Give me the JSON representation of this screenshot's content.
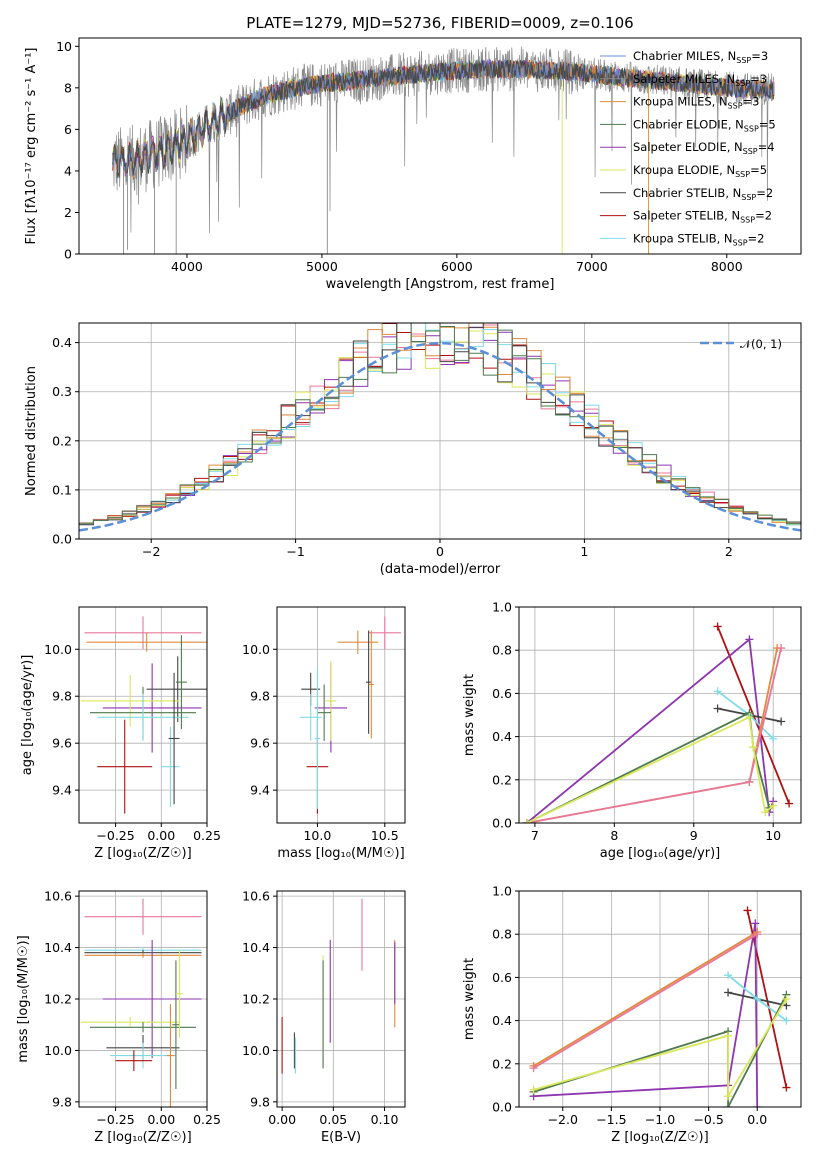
{
  "chart_data": [
    {
      "type": "line",
      "id": "spectrum",
      "title": "PLATE=1279, MJD=52736, FIBERID=0009, z=0.106",
      "xlabel": "wavelength [Angstrom, rest frame]",
      "ylabel": "Flux [fλ10⁻¹⁷ erg cm⁻² s⁻¹ A⁻¹]",
      "xlim": [
        3200,
        8550
      ],
      "ylim": [
        0,
        10.4
      ],
      "xticks": [
        "4000",
        "5000",
        "6000",
        "7000",
        "8000"
      ],
      "yticks": [
        "0",
        "2",
        "4",
        "6",
        "8",
        "10"
      ],
      "legend_placement": "top-right",
      "continuum": [
        [
          3450,
          4.4
        ],
        [
          3600,
          4.5
        ],
        [
          3800,
          4.9
        ],
        [
          4000,
          5.5
        ],
        [
          4200,
          6.4
        ],
        [
          4400,
          7.1
        ],
        [
          4600,
          7.7
        ],
        [
          4800,
          8.0
        ],
        [
          5000,
          8.2
        ],
        [
          5300,
          8.4
        ],
        [
          5600,
          8.6
        ],
        [
          5900,
          8.8
        ],
        [
          6200,
          8.9
        ],
        [
          6500,
          8.9
        ],
        [
          6800,
          8.8
        ],
        [
          7100,
          8.6
        ],
        [
          7400,
          8.4
        ],
        [
          7700,
          8.2
        ],
        [
          8000,
          8.0
        ],
        [
          8350,
          7.9
        ]
      ],
      "series": [
        {
          "name": "Chabrier MILES, N_SSP=3",
          "label": "Chabrier MILES, N",
          "sub": "SSP",
          "suffix": "=3",
          "color": "#6b8ed6"
        },
        {
          "name": "Salpeter MILES, N_SSP=3",
          "label": "Salpeter MILES, N",
          "sub": "SSP",
          "suffix": "=3",
          "color": "#8a8a8a"
        },
        {
          "name": "Kroupa MILES, N_SSP=3",
          "label": "Kroupa MILES, N",
          "sub": "SSP",
          "suffix": "=3",
          "color": "#e08a3c"
        },
        {
          "name": "Chabrier ELODIE, N_SSP=5",
          "label": "Chabrier ELODIE, N",
          "sub": "SSP",
          "suffix": "=5",
          "color": "#4e7a4e"
        },
        {
          "name": "Salpeter ELODIE, N_SSP=4",
          "label": "Salpeter ELODIE, N",
          "sub": "SSP",
          "suffix": "=4",
          "color": "#8e35b0"
        },
        {
          "name": "Kroupa ELODIE, N_SSP=5",
          "label": "Kroupa ELODIE, N",
          "sub": "SSP",
          "suffix": "=5",
          "color": "#d9e85a"
        },
        {
          "name": "Chabrier STELIB, N_SSP=2",
          "label": "Chabrier STELIB, N",
          "sub": "SSP",
          "suffix": "=2",
          "color": "#444444"
        },
        {
          "name": "Salpeter STELIB, N_SSP=2",
          "label": "Salpeter STELIB, N",
          "sub": "SSP",
          "suffix": "=2",
          "color": "#b01010"
        },
        {
          "name": "Kroupa STELIB, N_SSP=2",
          "label": "Kroupa STELIB, N",
          "sub": "SSP",
          "suffix": "=2",
          "color": "#7fdbe6"
        }
      ]
    },
    {
      "type": "histogram",
      "id": "residuals",
      "xlabel": "(data-model)/error",
      "ylabel": "Normed distribution",
      "xlim": [
        -2.5,
        2.5
      ],
      "ylim": [
        0,
        0.44
      ],
      "xticks": [
        "-2",
        "-1",
        "0",
        "1",
        "2"
      ],
      "yticks": [
        "0.0",
        "0.1",
        "0.2",
        "0.3",
        "0.4"
      ],
      "legend": "𝒩(0, 1)",
      "legend_placement": "top-right",
      "bin_width": 0.1,
      "bins_from": -2.5,
      "gaussian_color": "#5b8fd6",
      "hist_colors": [
        "#e8779a",
        "#8e35b0",
        "#b01010",
        "#d9e85a",
        "#7fdbe6",
        "#e08a3c",
        "#444444",
        "#4e7a4e"
      ]
    },
    {
      "type": "scatter",
      "id": "age-vs-Z",
      "xlabel": "Z [log10(Z/Z☉)]",
      "ylabel": "age  [log10(age/yr)]",
      "xlim": [
        -0.45,
        0.25
      ],
      "ylim": [
        9.26,
        10.18
      ],
      "xticks": [
        "-0.25",
        "0.00",
        "0.25"
      ],
      "yticks": [
        "9.4",
        "9.6",
        "9.8",
        "10.0"
      ],
      "points": [
        {
          "x": -0.1,
          "y": 10.07,
          "xerr": 0.32,
          "yerr": 0.07,
          "color": "#e8779a"
        },
        {
          "x": -0.08,
          "y": 10.03,
          "xerr": 0.33,
          "yerr": 0.04,
          "color": "#e08a3c"
        },
        {
          "x": 0.09,
          "y": 9.83,
          "xerr": 0.17,
          "yerr": 0.14,
          "color": "#444444"
        },
        {
          "x": -0.05,
          "y": 9.75,
          "xerr": 0.27,
          "yerr": 0.19,
          "color": "#8e35b0"
        },
        {
          "x": -0.17,
          "y": 9.78,
          "xerr": 0.27,
          "yerr": 0.11,
          "color": "#d9e85a"
        },
        {
          "x": -0.1,
          "y": 9.73,
          "xerr": 0.29,
          "yerr": 0.11,
          "color": "#4e7a4e"
        },
        {
          "x": -0.1,
          "y": 9.71,
          "xerr": 0.25,
          "yerr": 0.1,
          "color": "#7fdbe6"
        },
        {
          "x": -0.2,
          "y": 9.5,
          "xerr": 0.15,
          "yerr": 0.2,
          "color": "#b01010"
        },
        {
          "x": 0.05,
          "y": 9.5,
          "xerr": 0.05,
          "yerr": 0.17,
          "color": "#7fdbe6"
        },
        {
          "x": 0.07,
          "y": 9.62,
          "xerr": 0.03,
          "yerr": 0.28,
          "color": "#444444"
        },
        {
          "x": 0.11,
          "y": 9.86,
          "xerr": 0.03,
          "yerr": 0.2,
          "color": "#4e7a4e"
        }
      ]
    },
    {
      "type": "scatter",
      "id": "age-vs-mass",
      "xlabel": "mass [log10(M/M☉)]",
      "ylabel": "",
      "xlim": [
        9.7,
        10.65
      ],
      "ylim": [
        9.26,
        10.18
      ],
      "xticks": [
        "10.0",
        "10.5"
      ],
      "yticks": [
        "9.4",
        "9.6",
        "9.8",
        "10.0"
      ],
      "points": [
        {
          "x": 10.5,
          "y": 10.07,
          "xerr": 0.12,
          "yerr": 0.07,
          "color": "#e8779a"
        },
        {
          "x": 10.3,
          "y": 10.03,
          "xerr": 0.15,
          "yerr": 0.05,
          "color": "#e08a3c"
        },
        {
          "x": 9.95,
          "y": 9.83,
          "xerr": 0.07,
          "yerr": 0.07,
          "color": "#444444"
        },
        {
          "x": 10.1,
          "y": 9.75,
          "xerr": 0.12,
          "yerr": 0.19,
          "color": "#8e35b0"
        },
        {
          "x": 10.1,
          "y": 9.78,
          "xerr": 0.04,
          "yerr": 0.17,
          "color": "#d9e85a"
        },
        {
          "x": 10.05,
          "y": 9.73,
          "xerr": 0.05,
          "yerr": 0.12,
          "color": "#4e7a4e"
        },
        {
          "x": 9.95,
          "y": 9.71,
          "xerr": 0.08,
          "yerr": 0.1,
          "color": "#7fdbe6"
        },
        {
          "x": 10.0,
          "y": 9.5,
          "xerr": 0.08,
          "yerr": 0.2,
          "color": "#b01010"
        },
        {
          "x": 10.38,
          "y": 9.86,
          "xerr": 0.02,
          "yerr": 0.22,
          "color": "#444444"
        },
        {
          "x": 10.4,
          "y": 9.85,
          "xerr": 0.02,
          "yerr": 0.23,
          "color": "#e08a3c"
        },
        {
          "x": 10.0,
          "y": 9.62,
          "xerr": 0.02,
          "yerr": 0.3,
          "color": "#7fdbe6"
        }
      ]
    },
    {
      "type": "line",
      "id": "weight-vs-age",
      "xlabel": "age  [log10(age/yr)]",
      "ylabel": "mass weight",
      "xlim": [
        6.8,
        10.35
      ],
      "ylim": [
        0,
        1.0
      ],
      "xticks": [
        "7",
        "8",
        "9",
        "10"
      ],
      "yticks": [
        "0.0",
        "0.2",
        "0.4",
        "0.6",
        "0.8",
        "1.0"
      ],
      "series": [
        {
          "color": "#b01010",
          "points": [
            [
              9.3,
              0.91
            ],
            [
              10.2,
              0.09
            ]
          ]
        },
        {
          "color": "#8e35b0",
          "points": [
            [
              6.9,
              0.0
            ],
            [
              9.7,
              0.85
            ],
            [
              9.95,
              0.05
            ],
            [
              10.0,
              0.1
            ]
          ]
        },
        {
          "color": "#444444",
          "points": [
            [
              9.3,
              0.53
            ],
            [
              9.7,
              0.5
            ],
            [
              10.1,
              0.47
            ]
          ]
        },
        {
          "color": "#7fdbe6",
          "points": [
            [
              9.3,
              0.61
            ],
            [
              9.7,
              0.5
            ],
            [
              10.0,
              0.39
            ]
          ]
        },
        {
          "color": "#e08a3c",
          "points": [
            [
              6.9,
              0.0
            ],
            [
              9.7,
              0.19
            ],
            [
              10.05,
              0.81
            ]
          ]
        },
        {
          "color": "#e8779a",
          "points": [
            [
              6.9,
              0.0
            ],
            [
              9.7,
              0.19
            ],
            [
              10.1,
              0.81
            ]
          ]
        },
        {
          "color": "#4e7a4e",
          "points": [
            [
              6.9,
              0.0
            ],
            [
              9.7,
              0.51
            ],
            [
              9.75,
              0.35
            ],
            [
              9.95,
              0.07
            ]
          ]
        },
        {
          "color": "#d9e85a",
          "points": [
            [
              6.9,
              0.0
            ],
            [
              9.7,
              0.49
            ],
            [
              9.75,
              0.35
            ],
            [
              9.9,
              0.05
            ],
            [
              10.0,
              0.08
            ]
          ]
        }
      ]
    },
    {
      "type": "scatter",
      "id": "mass-vs-Z",
      "xlabel": "Z [log10(Z/Z☉)]",
      "ylabel": "mass [log10(M/M☉)]",
      "xlim": [
        -0.45,
        0.25
      ],
      "ylim": [
        9.78,
        10.62
      ],
      "xticks": [
        "-0.25",
        "0.00",
        "0.25"
      ],
      "yticks": [
        "9.8",
        "10.0",
        "10.2",
        "10.4",
        "10.6"
      ],
      "points": [
        {
          "x": -0.1,
          "y": 10.52,
          "xerr": 0.32,
          "yerr": 0.07,
          "color": "#e8779a"
        },
        {
          "x": -0.1,
          "y": 10.39,
          "xerr": 0.32,
          "yerr": 0.01,
          "color": "#7fdbe6"
        },
        {
          "x": -0.1,
          "y": 10.38,
          "xerr": 0.32,
          "yerr": 0.01,
          "color": "#444444"
        },
        {
          "x": -0.1,
          "y": 10.37,
          "xerr": 0.32,
          "yerr": 0.01,
          "color": "#e08a3c"
        },
        {
          "x": -0.05,
          "y": 10.2,
          "xerr": 0.27,
          "yerr": 0.23,
          "color": "#8e35b0"
        },
        {
          "x": -0.17,
          "y": 10.11,
          "xerr": 0.27,
          "yerr": 0.02,
          "color": "#d9e85a"
        },
        {
          "x": -0.1,
          "y": 10.09,
          "xerr": 0.29,
          "yerr": 0.02,
          "color": "#4e7a4e"
        },
        {
          "x": -0.1,
          "y": 10.01,
          "xerr": 0.2,
          "yerr": 0.05,
          "color": "#444444"
        },
        {
          "x": -0.1,
          "y": 9.98,
          "xerr": 0.18,
          "yerr": 0.05,
          "color": "#7fdbe6"
        },
        {
          "x": -0.15,
          "y": 9.96,
          "xerr": 0.1,
          "yerr": 0.04,
          "color": "#b01010"
        },
        {
          "x": 0.08,
          "y": 10.1,
          "xerr": 0.02,
          "yerr": 0.25,
          "color": "#4e7a4e"
        },
        {
          "x": 0.1,
          "y": 10.22,
          "xerr": 0.02,
          "yerr": 0.17,
          "color": "#d9e85a"
        },
        {
          "x": 0.05,
          "y": 9.98,
          "xerr": 0.02,
          "yerr": 0.2,
          "color": "#e08a3c"
        }
      ]
    },
    {
      "type": "scatter",
      "id": "mass-vs-EBV",
      "xlabel": "E(B-V)",
      "ylabel": "",
      "xlim": [
        -0.005,
        0.12
      ],
      "ylim": [
        9.78,
        10.62
      ],
      "xticks": [
        "0.00",
        "0.05",
        "0.10"
      ],
      "yticks": [
        "9.8",
        "10.0",
        "10.2",
        "10.4",
        "10.6"
      ],
      "points": [
        {
          "x": 0.0,
          "y": 10.02,
          "yerr": 0.11,
          "color": "#b01010"
        },
        {
          "x": 0.012,
          "y": 10.0,
          "yerr": 0.07,
          "color": "#444444"
        },
        {
          "x": 0.013,
          "y": 9.98,
          "yerr": 0.07,
          "color": "#7fdbe6"
        },
        {
          "x": 0.04,
          "y": 10.15,
          "yerr": 0.22,
          "color": "#d9e85a"
        },
        {
          "x": 0.04,
          "y": 10.14,
          "yerr": 0.21,
          "color": "#4e7a4e"
        },
        {
          "x": 0.047,
          "y": 10.23,
          "yerr": 0.2,
          "color": "#8e35b0"
        },
        {
          "x": 0.078,
          "y": 10.45,
          "yerr": 0.14,
          "color": "#e8779a"
        },
        {
          "x": 0.11,
          "y": 10.26,
          "yerr": 0.17,
          "color": "#e08a3c"
        },
        {
          "x": 0.11,
          "y": 10.3,
          "yerr": 0.12,
          "color": "#8e35b0"
        }
      ]
    },
    {
      "type": "line",
      "id": "weight-vs-Z",
      "xlabel": "Z [log10(Z/Z☉)]",
      "ylabel": "mass weight",
      "xlim": [
        -2.45,
        0.45
      ],
      "ylim": [
        0,
        1.0
      ],
      "xticks": [
        "-2.0",
        "-1.5",
        "-1.0",
        "-0.5",
        "0.0"
      ],
      "yticks": [
        "0.0",
        "0.2",
        "0.4",
        "0.6",
        "0.8",
        "1.0"
      ],
      "series": [
        {
          "color": "#b01010",
          "points": [
            [
              -0.1,
              0.91
            ],
            [
              0.3,
              0.09
            ]
          ]
        },
        {
          "color": "#8e35b0",
          "points": [
            [
              -2.3,
              0.05
            ],
            [
              -0.3,
              0.1
            ],
            [
              -0.02,
              0.85
            ],
            [
              0.0,
              0.0
            ]
          ]
        },
        {
          "color": "#444444",
          "points": [
            [
              -0.3,
              0.53
            ],
            [
              0.0,
              0.5
            ],
            [
              0.3,
              0.47
            ]
          ]
        },
        {
          "color": "#7fdbe6",
          "points": [
            [
              -0.3,
              0.61
            ],
            [
              0.0,
              0.5
            ],
            [
              0.3,
              0.4
            ]
          ]
        },
        {
          "color": "#e08a3c",
          "points": [
            [
              -2.3,
              0.19
            ],
            [
              0.0,
              0.81
            ]
          ]
        },
        {
          "color": "#e8779a",
          "points": [
            [
              -2.3,
              0.18
            ],
            [
              0.0,
              0.8
            ]
          ]
        },
        {
          "color": "#4e7a4e",
          "points": [
            [
              -2.3,
              0.07
            ],
            [
              -0.3,
              0.35
            ],
            [
              -0.3,
              0.0
            ],
            [
              0.3,
              0.52
            ]
          ]
        },
        {
          "color": "#d9e85a",
          "points": [
            [
              -2.3,
              0.08
            ],
            [
              -0.3,
              0.33
            ],
            [
              -0.3,
              0.05
            ],
            [
              0.3,
              0.5
            ]
          ]
        }
      ]
    }
  ]
}
